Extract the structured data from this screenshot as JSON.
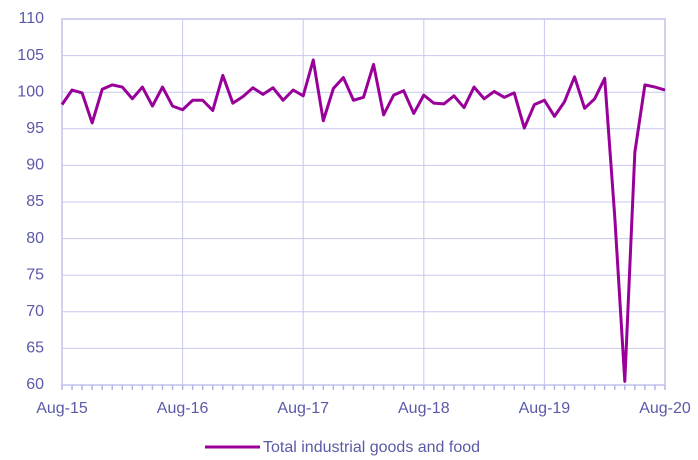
{
  "chart_data": {
    "type": "line",
    "categories": [
      "Aug-15",
      null,
      null,
      null,
      null,
      null,
      null,
      null,
      null,
      null,
      null,
      null,
      "Aug-16",
      null,
      null,
      null,
      null,
      null,
      null,
      null,
      null,
      null,
      null,
      null,
      "Aug-17",
      null,
      null,
      null,
      null,
      null,
      null,
      null,
      null,
      null,
      null,
      null,
      "Aug-18",
      null,
      null,
      null,
      null,
      null,
      null,
      null,
      null,
      null,
      null,
      null,
      "Aug-19",
      null,
      null,
      null,
      null,
      null,
      null,
      null,
      null,
      null,
      null,
      null,
      "Aug-20"
    ],
    "series": [
      {
        "name": "Total industrial goods and food",
        "color": "#990099",
        "values": [
          98.3,
          100.3,
          99.9,
          95.8,
          100.4,
          101.0,
          100.7,
          99.1,
          100.7,
          98.1,
          100.7,
          98.1,
          97.6,
          98.9,
          98.9,
          97.5,
          102.3,
          98.5,
          99.4,
          100.6,
          99.7,
          100.6,
          98.9,
          100.3,
          99.5,
          104.4,
          96.1,
          100.5,
          102.0,
          98.9,
          99.3,
          103.8,
          96.9,
          99.6,
          100.2,
          97.1,
          99.6,
          98.5,
          98.4,
          99.5,
          97.9,
          100.7,
          99.1,
          100.1,
          99.3,
          99.9,
          95.1,
          98.3,
          98.9,
          96.7,
          98.7,
          102.1,
          97.8,
          99.1,
          101.9,
          83.0,
          60.5,
          91.8,
          101.0,
          100.7,
          100.3
        ]
      }
    ],
    "ylim": [
      60,
      110
    ],
    "yticks": [
      60,
      65,
      70,
      75,
      80,
      85,
      90,
      95,
      100,
      105,
      110
    ],
    "grid": true,
    "legend": "bottom"
  }
}
